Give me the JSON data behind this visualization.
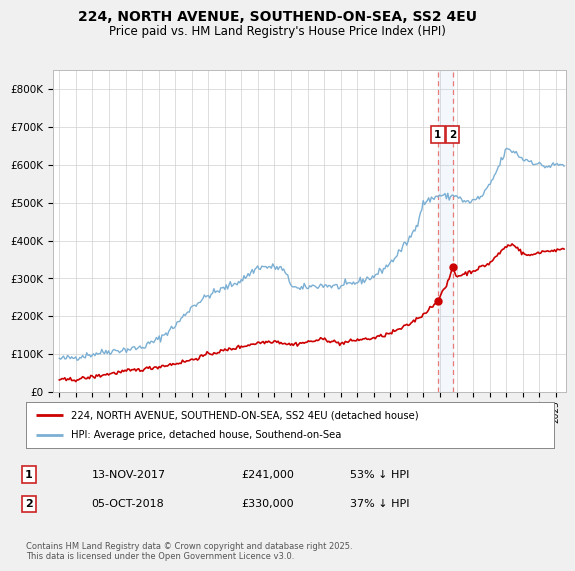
{
  "title": "224, NORTH AVENUE, SOUTHEND-ON-SEA, SS2 4EU",
  "subtitle": "Price paid vs. HM Land Registry's House Price Index (HPI)",
  "legend_label_red": "224, NORTH AVENUE, SOUTHEND-ON-SEA, SS2 4EU (detached house)",
  "legend_label_blue": "HPI: Average price, detached house, Southend-on-Sea",
  "ylabel_ticks": [
    "£0",
    "£100K",
    "£200K",
    "£300K",
    "£400K",
    "£500K",
    "£600K",
    "£700K",
    "£800K"
  ],
  "ytick_values": [
    0,
    100000,
    200000,
    300000,
    400000,
    500000,
    600000,
    700000,
    800000
  ],
  "ylim": [
    0,
    850000
  ],
  "xlim_start": 1994.6,
  "xlim_end": 2025.6,
  "transaction1_x": 2017.87,
  "transaction1_y": 241000,
  "transaction2_x": 2018.76,
  "transaction2_y": 330000,
  "vline1_x": 2017.87,
  "vline2_x": 2018.76,
  "marker_color": "#cc0000",
  "red_line_color": "#cc0000",
  "blue_line_color": "#7bafd4",
  "vline_color": "#e87a7a",
  "footer_text": "Contains HM Land Registry data © Crown copyright and database right 2025.\nThis data is licensed under the Open Government Licence v3.0.",
  "annotation1_label": "1",
  "annotation1_date": "13-NOV-2017",
  "annotation1_price": "£241,000",
  "annotation1_hpi": "53% ↓ HPI",
  "annotation2_label": "2",
  "annotation2_date": "05-OCT-2018",
  "annotation2_price": "£330,000",
  "annotation2_hpi": "37% ↓ HPI",
  "background_color": "#f0f0f0",
  "plot_bg_color": "#ffffff",
  "hpi_key_x": [
    1995,
    1996,
    1997,
    1998,
    1999,
    2000,
    2001,
    2002,
    2003,
    2004,
    2005,
    2006,
    2007,
    2008,
    2008.5,
    2009,
    2009.5,
    2010,
    2011,
    2012,
    2013,
    2014,
    2015,
    2016,
    2016.5,
    2017,
    2018,
    2018.5,
    2019,
    2019.5,
    2020,
    2020.5,
    2021,
    2021.5,
    2022,
    2022.5,
    2023,
    2023.5,
    2024,
    2024.5,
    2025
  ],
  "hpi_key_y": [
    87000,
    92000,
    100000,
    108000,
    112000,
    118000,
    140000,
    175000,
    225000,
    255000,
    275000,
    295000,
    330000,
    330000,
    325000,
    285000,
    270000,
    278000,
    282000,
    278000,
    290000,
    305000,
    340000,
    395000,
    430000,
    500000,
    520000,
    515000,
    520000,
    500000,
    505000,
    515000,
    545000,
    590000,
    640000,
    635000,
    615000,
    610000,
    600000,
    595000,
    600000
  ],
  "price_key_x": [
    1995,
    1996,
    1997,
    1998,
    1999,
    2000,
    2001,
    2002,
    2003,
    2004,
    2005,
    2006,
    2007,
    2008,
    2009,
    2010,
    2011,
    2012,
    2013,
    2014,
    2015,
    2016,
    2017,
    2017.87,
    2018.5,
    2018.76,
    2019,
    2020,
    2021,
    2022,
    2022.5,
    2023,
    2023.5,
    2024,
    2024.5,
    2025
  ],
  "price_key_y": [
    32000,
    33000,
    40000,
    48000,
    55000,
    60000,
    67000,
    75000,
    85000,
    100000,
    110000,
    120000,
    130000,
    135000,
    125000,
    132000,
    140000,
    128000,
    138000,
    142000,
    155000,
    175000,
    205000,
    241000,
    290000,
    330000,
    305000,
    320000,
    340000,
    385000,
    390000,
    365000,
    360000,
    370000,
    372000,
    375000
  ]
}
